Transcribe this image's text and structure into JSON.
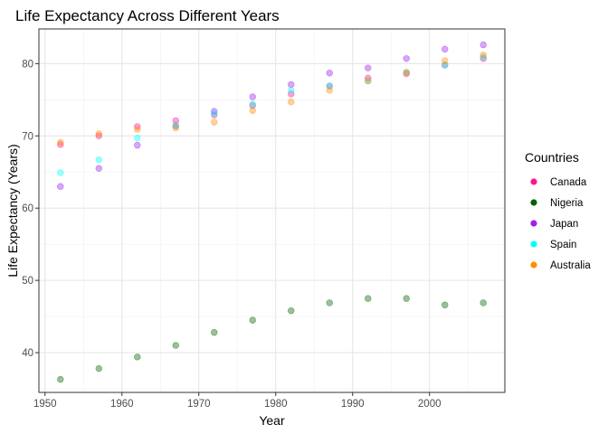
{
  "chart_data": {
    "type": "scatter",
    "title": "Life Expectancy Across Different Years",
    "xlabel": "Year",
    "ylabel": "Life Expectancy (Years)",
    "xlim": [
      1949.2,
      2009.8
    ],
    "ylim": [
      34.5,
      84.8
    ],
    "xticks": [
      1950,
      1960,
      1970,
      1980,
      1990,
      2000
    ],
    "yticks": [
      40,
      50,
      60,
      70,
      80
    ],
    "grid": true,
    "legend": {
      "title": "Countries",
      "position": "right"
    },
    "x": [
      1952,
      1957,
      1962,
      1967,
      1972,
      1977,
      1982,
      1987,
      1992,
      1997,
      2002,
      2007
    ],
    "series": [
      {
        "name": "Canada",
        "color": "#ff1493",
        "values": [
          68.8,
          70.0,
          71.3,
          72.1,
          72.9,
          74.2,
          75.8,
          76.9,
          78.0,
          78.6,
          79.8,
          80.7
        ]
      },
      {
        "name": "Nigeria",
        "color": "#006400",
        "values": [
          36.3,
          37.8,
          39.4,
          41.0,
          42.8,
          44.5,
          45.8,
          46.9,
          47.5,
          47.5,
          46.6,
          46.9
        ]
      },
      {
        "name": "Japan",
        "color": "#a020f0",
        "values": [
          63.0,
          65.5,
          68.7,
          71.4,
          73.4,
          75.4,
          77.1,
          78.7,
          79.4,
          80.7,
          82.0,
          82.6
        ]
      },
      {
        "name": "Spain",
        "color": "#00ffff",
        "values": [
          64.9,
          66.7,
          69.7,
          71.4,
          73.1,
          74.4,
          76.3,
          76.9,
          77.6,
          78.8,
          79.8,
          80.9
        ]
      },
      {
        "name": "Australia",
        "color": "#ff8c00",
        "values": [
          69.1,
          70.3,
          70.9,
          71.1,
          71.9,
          73.5,
          74.7,
          76.3,
          77.6,
          78.8,
          80.4,
          81.2
        ]
      }
    ]
  }
}
